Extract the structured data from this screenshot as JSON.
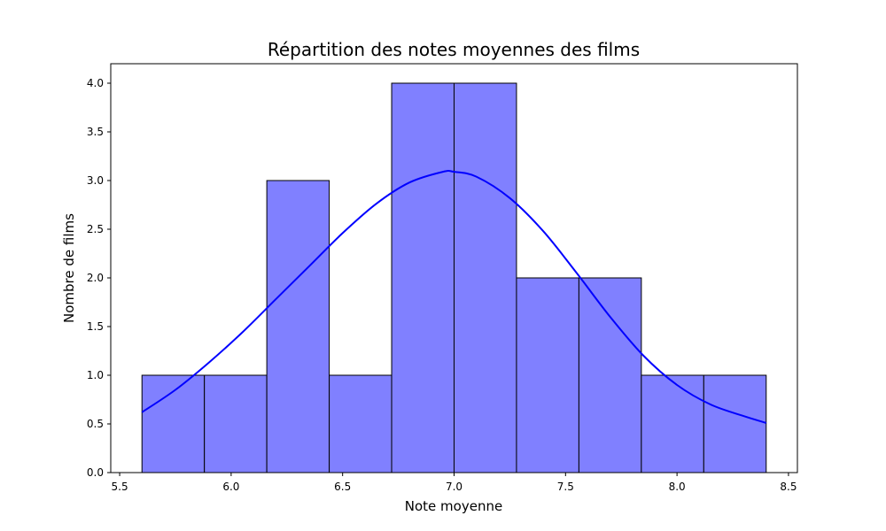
{
  "chart_data": {
    "type": "bar",
    "title": "Répartition des notes moyennes des films",
    "xlabel": "Note moyenne",
    "ylabel": "Nombre de films",
    "bins": [
      {
        "start": 5.6,
        "end": 5.88,
        "count": 1
      },
      {
        "start": 5.88,
        "end": 6.16,
        "count": 1
      },
      {
        "start": 6.16,
        "end": 6.44,
        "count": 3
      },
      {
        "start": 6.44,
        "end": 6.72,
        "count": 1
      },
      {
        "start": 6.72,
        "end": 7.0,
        "count": 4
      },
      {
        "start": 7.0,
        "end": 7.28,
        "count": 4
      },
      {
        "start": 7.28,
        "end": 7.56,
        "count": 2
      },
      {
        "start": 7.56,
        "end": 7.84,
        "count": 2
      },
      {
        "start": 7.84,
        "end": 8.12,
        "count": 1
      },
      {
        "start": 8.12,
        "end": 8.4,
        "count": 1
      }
    ],
    "kde": {
      "x": [
        5.6,
        5.75,
        5.9,
        6.05,
        6.2,
        6.35,
        6.5,
        6.65,
        6.8,
        6.95,
        7.0,
        7.1,
        7.25,
        7.4,
        7.55,
        7.7,
        7.85,
        8.0,
        8.15,
        8.3,
        8.4
      ],
      "y": [
        0.62,
        0.85,
        1.13,
        1.44,
        1.78,
        2.12,
        2.46,
        2.76,
        2.98,
        3.09,
        3.09,
        3.04,
        2.82,
        2.48,
        2.05,
        1.6,
        1.2,
        0.9,
        0.7,
        0.58,
        0.51
      ]
    },
    "xlim": [
      5.46,
      8.54
    ],
    "ylim": [
      0,
      4.2
    ],
    "xticks": [
      "5.5",
      "6.0",
      "6.5",
      "7.0",
      "7.5",
      "8.0",
      "8.5"
    ],
    "yticks": [
      "0.0",
      "0.5",
      "1.0",
      "1.5",
      "2.0",
      "2.5",
      "3.0",
      "3.5",
      "4.0"
    ],
    "grid": false,
    "colors": {
      "bar_fill": "#8080ff",
      "bar_edge": "#000000",
      "kde_line": "#0000ff"
    }
  }
}
